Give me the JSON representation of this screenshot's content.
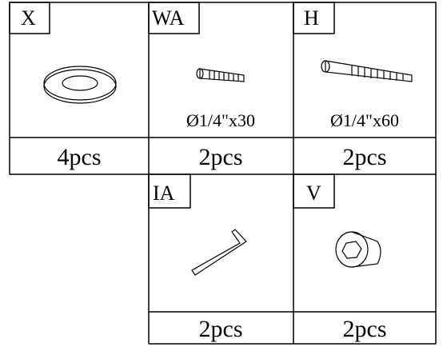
{
  "parts": [
    {
      "code": "X",
      "qty": "4pcs"
    },
    {
      "code": "WA",
      "size": "Ø1/4\"x30",
      "qty": "2pcs"
    },
    {
      "code": "H",
      "size": "Ø1/4\"x60",
      "qty": "2pcs"
    },
    {
      "code": "IA",
      "qty": "2pcs"
    },
    {
      "code": "V",
      "qty": "2pcs"
    }
  ]
}
